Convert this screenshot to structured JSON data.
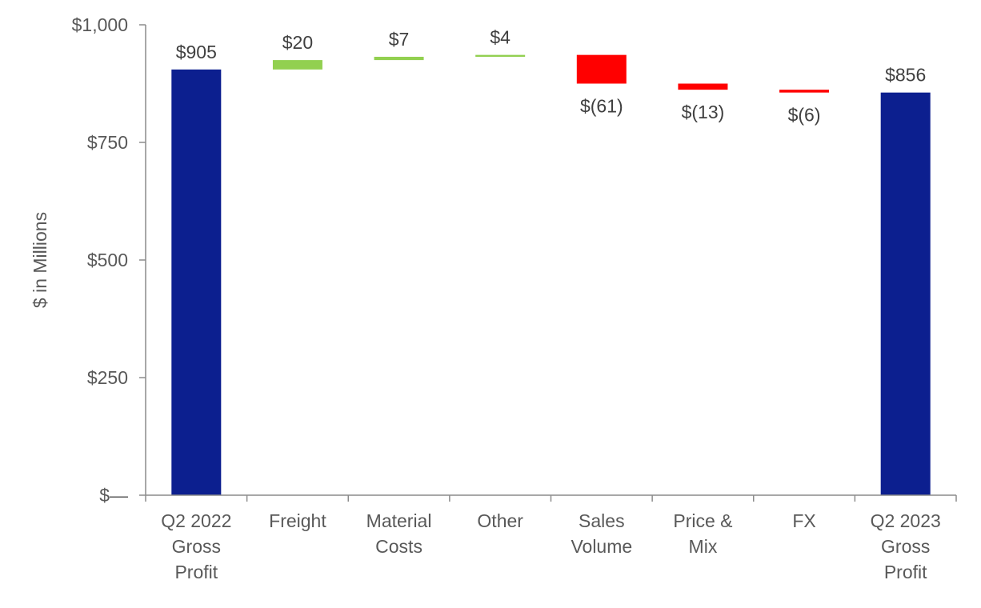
{
  "chart_data": {
    "type": "waterfall",
    "title": "",
    "ylabel": "$ in Millions",
    "xlabel": "",
    "ylim": [
      0,
      1000
    ],
    "yticks": [
      {
        "value": 0,
        "label": "$—"
      },
      {
        "value": 250,
        "label": "$250"
      },
      {
        "value": 500,
        "label": "$500"
      },
      {
        "value": 750,
        "label": "$750"
      },
      {
        "value": 1000,
        "label": "$1,000"
      }
    ],
    "categories": [
      [
        "Q2 2022",
        "Gross",
        "Profit"
      ],
      [
        "Freight"
      ],
      [
        "Material",
        "Costs"
      ],
      [
        "Other"
      ],
      [
        "Sales",
        "Volume"
      ],
      [
        "Price &",
        "Mix"
      ],
      [
        "FX"
      ],
      [
        "Q2 2023",
        "Gross",
        "Profit"
      ]
    ],
    "steps": [
      {
        "kind": "total",
        "value": 905,
        "label": "$905"
      },
      {
        "kind": "delta",
        "value": 20,
        "label": "$20"
      },
      {
        "kind": "delta",
        "value": 7,
        "label": "$7"
      },
      {
        "kind": "delta",
        "value": 4,
        "label": "$4"
      },
      {
        "kind": "delta",
        "value": -61,
        "label": "$(61)"
      },
      {
        "kind": "delta",
        "value": -13,
        "label": "$(13)"
      },
      {
        "kind": "delta",
        "value": -6,
        "label": "$(6)"
      },
      {
        "kind": "total",
        "value": 856,
        "label": "$856"
      }
    ],
    "colors": {
      "total": "#0c1f8f",
      "increase": "#92d050",
      "decrease": "#ff0000",
      "axis": "#8c8c8c"
    }
  }
}
